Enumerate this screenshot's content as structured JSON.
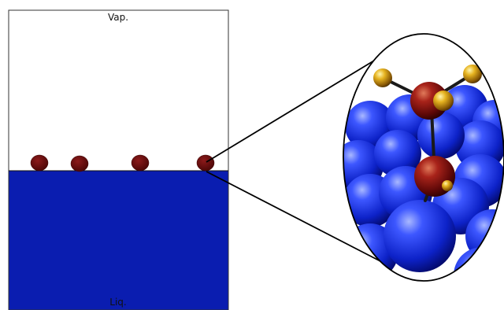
{
  "labels": {
    "vapor": "Vap.",
    "liquid": "Liq."
  },
  "colors": {
    "liquid": "#0a1db0",
    "adsorbate": "#6e0c0c",
    "outline": "#000000"
  },
  "adsorbed_molecule_count": 4
}
